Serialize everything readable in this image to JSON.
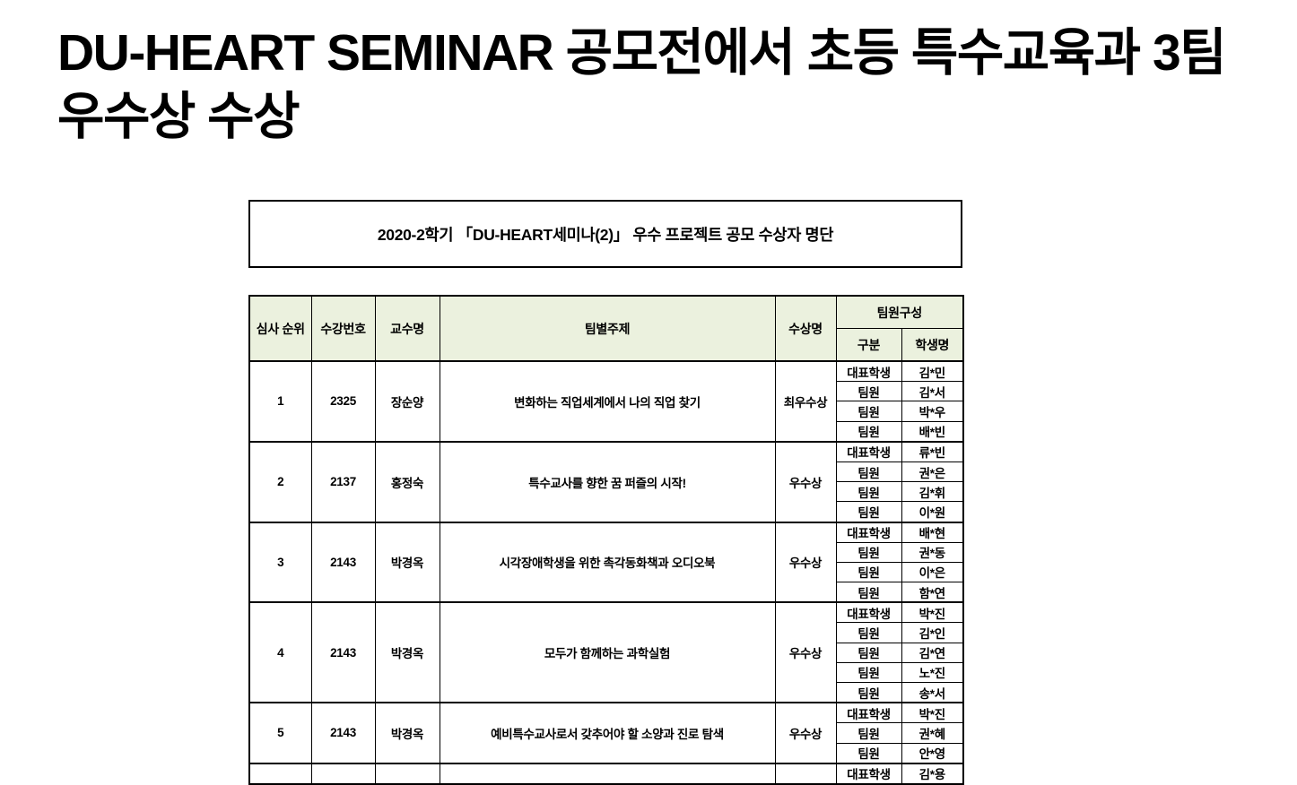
{
  "doc_title": {
    "lines": [
      "DU-HEART SEMINAR 공모전에서 초등 특수교육과 3팀",
      "우수상 수상"
    ]
  },
  "caption": "2020-2학기 「DU-HEART세미나(2)」 우수 프로젝트 공모 수상자 명단",
  "table": {
    "headers": {
      "rank": "심사 순위",
      "course_no": "수강번호",
      "professor": "교수명",
      "topic": "팀별주제",
      "award": "수상명",
      "team": "팀원구성",
      "role": "구분",
      "student": "학생명"
    },
    "rows": [
      {
        "rank": "1",
        "course_no": "2325",
        "professor": "장순양",
        "topic": "변화하는 직업세계에서 나의 직업 찾기",
        "award": "최우수상",
        "members": [
          {
            "role": "대표학생",
            "name": "김*민"
          },
          {
            "role": "팀원",
            "name": "김*서"
          },
          {
            "role": "팀원",
            "name": "박*우"
          },
          {
            "role": "팀원",
            "name": "배*빈"
          }
        ]
      },
      {
        "rank": "2",
        "course_no": "2137",
        "professor": "홍정숙",
        "topic": "특수교사를 향한 꿈 퍼즐의 시작!",
        "award": "우수상",
        "members": [
          {
            "role": "대표학생",
            "name": "류*빈"
          },
          {
            "role": "팀원",
            "name": "권*은"
          },
          {
            "role": "팀원",
            "name": "김*휘"
          },
          {
            "role": "팀원",
            "name": "이*원"
          }
        ]
      },
      {
        "rank": "3",
        "course_no": "2143",
        "professor": "박경옥",
        "topic": "시각장애학생을 위한 촉각동화책과 오디오북",
        "award": "우수상",
        "members": [
          {
            "role": "대표학생",
            "name": "배*현"
          },
          {
            "role": "팀원",
            "name": "권*동"
          },
          {
            "role": "팀원",
            "name": "이*은"
          },
          {
            "role": "팀원",
            "name": "함*연"
          }
        ]
      },
      {
        "rank": "4",
        "course_no": "2143",
        "professor": "박경옥",
        "topic": "모두가 함께하는 과학실험",
        "award": "우수상",
        "members": [
          {
            "role": "대표학생",
            "name": "박*진"
          },
          {
            "role": "팀원",
            "name": "김*인"
          },
          {
            "role": "팀원",
            "name": "김*연"
          },
          {
            "role": "팀원",
            "name": "노*진"
          },
          {
            "role": "팀원",
            "name": "송*서"
          }
        ]
      },
      {
        "rank": "5",
        "course_no": "2143",
        "professor": "박경옥",
        "topic": "예비특수교사로서 갖추어야 할 소양과 진로 탐색",
        "award": "우수상",
        "members": [
          {
            "role": "대표학생",
            "name": "박*진"
          },
          {
            "role": "팀원",
            "name": "권*혜"
          },
          {
            "role": "팀원",
            "name": "안*영"
          }
        ]
      },
      {
        "rank": "",
        "course_no": "",
        "professor": "",
        "topic": "",
        "award": "",
        "members": [
          {
            "role": "대표학생",
            "name": "김*용"
          }
        ]
      }
    ]
  },
  "colors": {
    "header_bg": "#ebf1de",
    "border": "#000000",
    "text": "#000000",
    "page_bg": "#ffffff"
  }
}
